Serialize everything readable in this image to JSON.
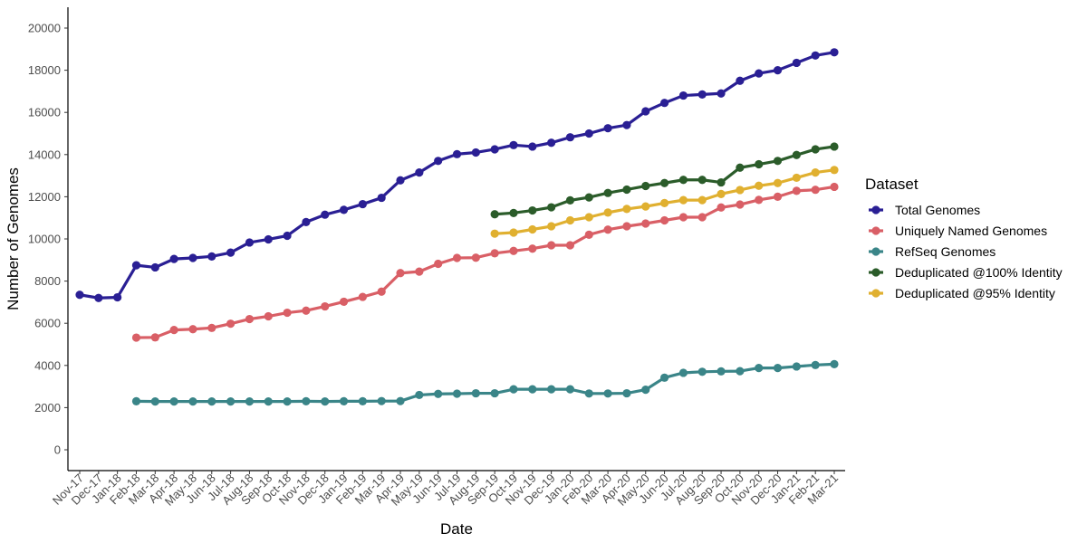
{
  "chart_data": {
    "type": "line",
    "xlabel": "Date",
    "ylabel": "Number of Genomes",
    "ylim": [
      -1000,
      21000
    ],
    "yticks": [
      0,
      2000,
      4000,
      6000,
      8000,
      10000,
      12000,
      14000,
      16000,
      18000,
      20000
    ],
    "grid": false,
    "legend": {
      "title": "Dataset",
      "position": "right"
    },
    "categories": [
      "Nov-17",
      "Dec-17",
      "Jan-18",
      "Feb-18",
      "Mar-18",
      "Apr-18",
      "May-18",
      "Jun-18",
      "Jul-18",
      "Aug-18",
      "Sep-18",
      "Oct-18",
      "Nov-18",
      "Dec-18",
      "Jan-19",
      "Feb-19",
      "Mar-19",
      "Apr-19",
      "May-19",
      "Jun-19",
      "Jul-19",
      "Aug-19",
      "Sep-19",
      "Oct-19",
      "Nov-19",
      "Dec-19",
      "Jan-20",
      "Feb-20",
      "Mar-20",
      "Apr-20",
      "May-20",
      "Jun-20",
      "Jul-20",
      "Aug-20",
      "Sep-20",
      "Oct-20",
      "Nov-20",
      "Dec-20",
      "Jan-21",
      "Feb-21",
      "Mar-21"
    ],
    "series": [
      {
        "name": "Total Genomes",
        "color": "#2a1f94",
        "values": [
          7350,
          7200,
          7230,
          8750,
          8650,
          9050,
          9100,
          9170,
          9350,
          9830,
          9980,
          10150,
          10800,
          11150,
          11380,
          11650,
          11950,
          12780,
          13150,
          13700,
          14020,
          14100,
          14250,
          14450,
          14380,
          14560,
          14820,
          15000,
          15250,
          15400,
          16050,
          16450,
          16800,
          16850,
          16900,
          17500,
          17850,
          18000,
          18350,
          18700,
          18850
        ]
      },
      {
        "name": "Uniquely Named Genomes",
        "color": "#d95f66",
        "values": [
          null,
          null,
          null,
          5320,
          5330,
          5680,
          5720,
          5780,
          5980,
          6200,
          6330,
          6500,
          6600,
          6800,
          7020,
          7250,
          7500,
          8380,
          8450,
          8820,
          9100,
          9110,
          9320,
          9430,
          9540,
          9700,
          9700,
          10200,
          10440,
          10600,
          10730,
          10880,
          11030,
          11030,
          11490,
          11630,
          11850,
          12000,
          12280,
          12330,
          12470
        ]
      },
      {
        "name": "RefSeq Genomes",
        "color": "#3a8588",
        "values": [
          null,
          null,
          null,
          2300,
          2290,
          2290,
          2290,
          2290,
          2290,
          2290,
          2290,
          2290,
          2300,
          2290,
          2300,
          2300,
          2310,
          2310,
          2600,
          2650,
          2660,
          2680,
          2680,
          2870,
          2870,
          2870,
          2870,
          2670,
          2670,
          2680,
          2850,
          3420,
          3650,
          3700,
          3720,
          3730,
          3880,
          3880,
          3950,
          4020,
          4060
        ]
      },
      {
        "name": "Deduplicated @100% Identity",
        "color": "#2b5c2a",
        "values": [
          null,
          null,
          null,
          null,
          null,
          null,
          null,
          null,
          null,
          null,
          null,
          null,
          null,
          null,
          null,
          null,
          null,
          null,
          null,
          null,
          null,
          null,
          11170,
          11230,
          11350,
          11500,
          11830,
          11970,
          12180,
          12340,
          12510,
          12650,
          12800,
          12800,
          12680,
          13380,
          13540,
          13700,
          13980,
          14250,
          14380
        ]
      },
      {
        "name": "Deduplicated @95% Identity",
        "color": "#e0b030",
        "values": [
          null,
          null,
          null,
          null,
          null,
          null,
          null,
          null,
          null,
          null,
          null,
          null,
          null,
          null,
          null,
          null,
          null,
          null,
          null,
          null,
          null,
          null,
          10250,
          10300,
          10450,
          10600,
          10880,
          11030,
          11250,
          11420,
          11540,
          11700,
          11840,
          11840,
          12130,
          12320,
          12520,
          12650,
          12900,
          13150,
          13270
        ]
      }
    ]
  }
}
